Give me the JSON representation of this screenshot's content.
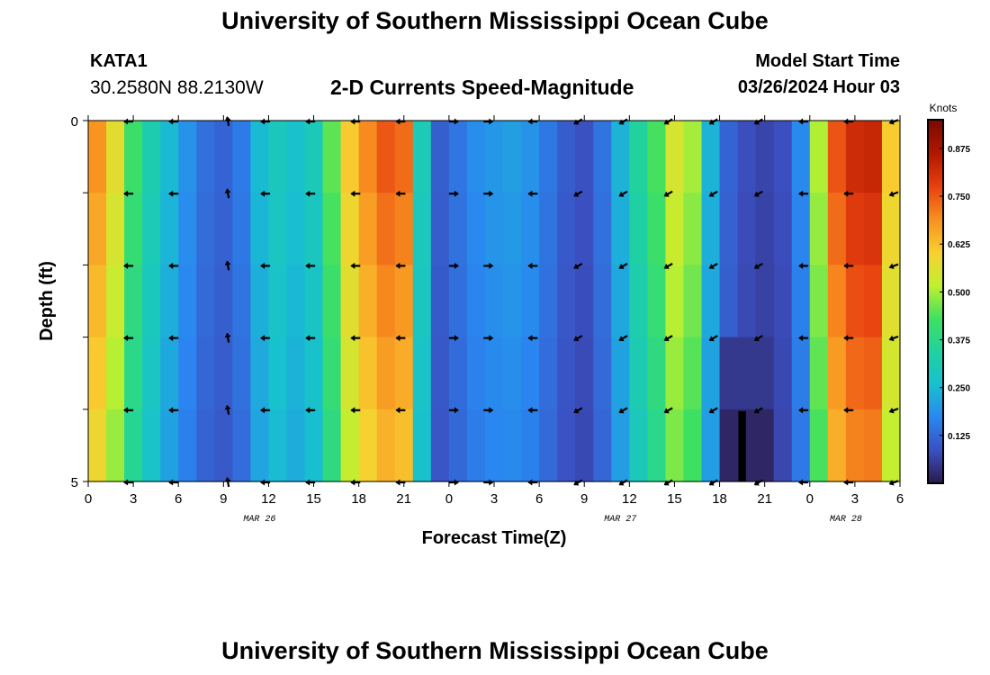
{
  "header": {
    "title": "University of Southern Mississippi Ocean Cube",
    "station_id": "KATA1",
    "coords": "30.2580N  88.2130W",
    "subtitle": "2-D Currents Speed-Magnitude",
    "model_start_label": "Model Start Time",
    "model_start_value": "03/26/2024 Hour 03"
  },
  "footer": {
    "title": "University of Southern Mississippi Ocean Cube"
  },
  "chart_data": {
    "type": "heatmap",
    "title": "2-D Currents Speed-Magnitude",
    "xlabel": "Forecast Time(Z)",
    "ylabel": "Depth (ft)",
    "ylim": [
      0,
      5
    ],
    "y_tick_labels": [
      "0",
      "5"
    ],
    "x_tick_labels": [
      "0",
      "3",
      "6",
      "9",
      "12",
      "15",
      "18",
      "21",
      "0",
      "3",
      "6",
      "9",
      "12",
      "15",
      "18",
      "21",
      "0",
      "3",
      "6"
    ],
    "date_labels": [
      {
        "text": "MAR 26",
        "hour": 11.4
      },
      {
        "text": "MAR 27",
        "hour": 35.4
      },
      {
        "text": "MAR 28",
        "hour": 50.4
      }
    ],
    "x_hours_range": [
      0,
      54
    ],
    "depth_rows": 5,
    "colorbar": {
      "label": "Knots",
      "ticks": [
        "0.125",
        "0.250",
        "0.375",
        "0.500",
        "0.625",
        "0.750",
        "0.875"
      ],
      "range": [
        0,
        0.95
      ],
      "colors": [
        "#2a1a4a",
        "#3b4fc0",
        "#2a86f0",
        "#18c0d0",
        "#20d2a0",
        "#3fe060",
        "#c0f030",
        "#f8d030",
        "#f89020",
        "#e84010",
        "#b01800",
        "#7a0a00"
      ]
    },
    "speed_profile_hours": [
      0,
      1,
      2,
      3,
      4,
      5,
      6,
      7,
      8,
      9,
      10,
      11,
      12,
      13,
      14,
      15,
      16,
      17,
      18,
      19,
      20,
      21,
      22,
      23,
      24,
      25,
      26,
      27,
      28,
      29,
      30,
      31,
      32,
      33,
      34,
      35,
      36,
      37,
      38,
      39,
      40,
      41,
      42,
      43,
      44,
      45,
      46,
      47,
      48,
      49,
      50,
      51,
      52,
      53,
      54
    ],
    "speed_profile_knots": [
      0.72,
      0.66,
      0.55,
      0.42,
      0.33,
      0.27,
      0.22,
      0.17,
      0.13,
      0.12,
      0.14,
      0.22,
      0.3,
      0.29,
      0.26,
      0.3,
      0.42,
      0.58,
      0.66,
      0.72,
      0.76,
      0.73,
      0.36,
      0.1,
      0.13,
      0.16,
      0.19,
      0.2,
      0.21,
      0.2,
      0.18,
      0.13,
      0.1,
      0.09,
      0.13,
      0.2,
      0.3,
      0.38,
      0.45,
      0.55,
      0.55,
      0.3,
      0.15,
      0.1,
      0.08,
      0.07,
      0.08,
      0.11,
      0.28,
      0.66,
      0.78,
      0.82,
      0.85,
      0.75,
      0.4
    ],
    "deep_low_patch": {
      "hour_start": 41.5,
      "hour_end": 45.5,
      "knots": 0.02
    },
    "arrow_hours": [
      2.7,
      5.7,
      9.3,
      11.8,
      14.8,
      17.8,
      20.8,
      24.3,
      26.6,
      29.6,
      32.6,
      35.6,
      38.6,
      41.6,
      44.6,
      47.6,
      50.6,
      53.6
    ],
    "arrow_directions_deg": [
      180,
      180,
      100,
      180,
      180,
      180,
      180,
      0,
      0,
      180,
      210,
      210,
      210,
      210,
      210,
      180,
      180,
      200
    ]
  }
}
